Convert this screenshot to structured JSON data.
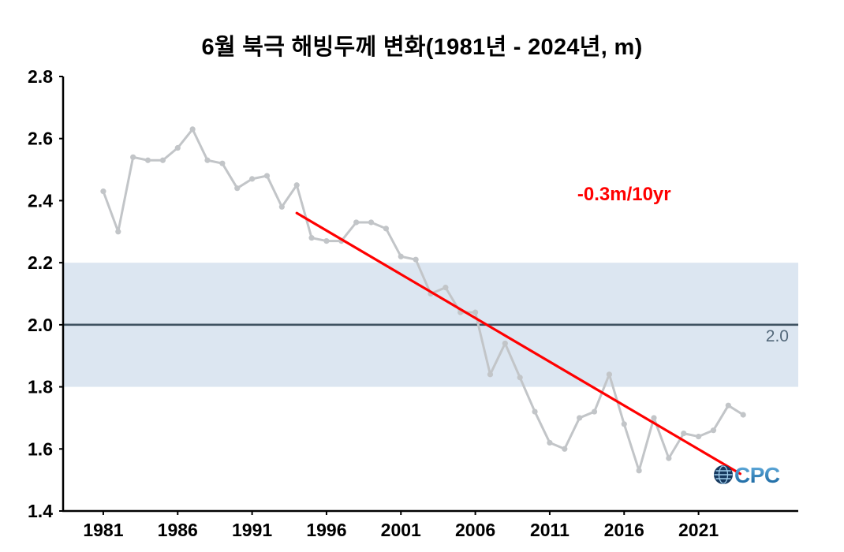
{
  "chart_data": {
    "type": "line",
    "title": "6월 북극 해빙두께 변화(1981년 - 2024년, m)",
    "xlabel": "",
    "ylabel": "",
    "x": [
      1981,
      1982,
      1983,
      1984,
      1985,
      1986,
      1987,
      1988,
      1989,
      1990,
      1991,
      1992,
      1993,
      1994,
      1995,
      1996,
      1997,
      1998,
      1999,
      2000,
      2001,
      2002,
      2003,
      2004,
      2005,
      2006,
      2007,
      2008,
      2009,
      2010,
      2011,
      2012,
      2013,
      2014,
      2015,
      2016,
      2017,
      2018,
      2019,
      2020,
      2021,
      2022,
      2023,
      2024
    ],
    "series": [
      {
        "name": "june-arctic-sea-ice-thickness-m",
        "color": "#c2c5c8",
        "values": [
          2.43,
          2.3,
          2.54,
          2.53,
          2.53,
          2.57,
          2.63,
          2.53,
          2.52,
          2.44,
          2.47,
          2.48,
          2.38,
          2.45,
          2.28,
          2.27,
          2.27,
          2.33,
          2.33,
          2.31,
          2.22,
          2.21,
          2.1,
          2.12,
          2.04,
          2.04,
          1.84,
          1.94,
          1.83,
          1.72,
          1.62,
          1.6,
          1.7,
          1.72,
          1.84,
          1.68,
          1.53,
          1.7,
          1.57,
          1.65,
          1.64,
          1.66,
          1.74,
          1.71
        ]
      }
    ],
    "trend_line": {
      "label": "-0.3m/10yr",
      "color": "#ff0000",
      "x1": 1994,
      "y1": 2.36,
      "x2": 2023.8,
      "y2": 1.52
    },
    "annotation": {
      "text": "-0.3m/10yr",
      "color": "#ff0000",
      "x": 2016,
      "y": 2.42
    },
    "reference_line": {
      "value": 2.0,
      "label": "2.0",
      "color": "#3f5261",
      "label_color": "#53687a"
    },
    "reference_band": {
      "from": 1.8,
      "to": 2.2,
      "color": "#dce6f1"
    },
    "xlim": [
      1978.3,
      2027.7
    ],
    "ylim": [
      1.4,
      2.8
    ],
    "x_ticks": [
      1981,
      1986,
      1991,
      1996,
      2001,
      2006,
      2011,
      2016,
      2021
    ],
    "y_ticks": [
      "1.4",
      "1.6",
      "1.8",
      "2.0",
      "2.2",
      "2.4",
      "2.6",
      "2.8"
    ],
    "grid": false,
    "legend": "none"
  },
  "logo": {
    "text": "OCPC",
    "globe_color": "#16395f",
    "letters_color_top": "#6db8e6",
    "letters_color_bottom": "#0d5a96"
  }
}
